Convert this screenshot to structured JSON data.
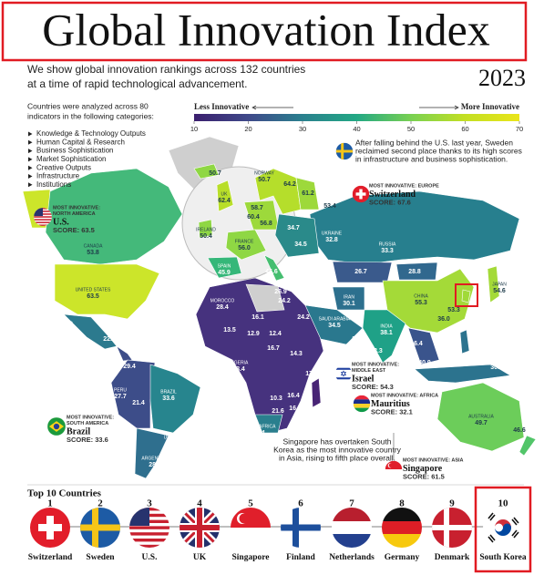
{
  "header": {
    "title": "Global Innovation Index",
    "subtitle": [
      "We show global innovation rankings across 132 countries",
      "at a time of rapid technological advancement."
    ],
    "year": "2023"
  },
  "legend": {
    "low": "Less Innovative",
    "high": "More Innovative",
    "ticks": [
      10,
      20,
      30,
      40,
      50,
      60,
      70
    ]
  },
  "intro": {
    "text": [
      "Countries were analyzed across 80",
      "indicators in the following categories:"
    ],
    "categories": [
      "Knowledge & Technology Outputs",
      "Human Capital & Research",
      "Business Sophistication",
      "Market Sophistication",
      "Creative Outputs",
      "Infrastructure",
      "Institutions"
    ]
  },
  "notes": {
    "sweden": [
      "After falling behind the U.S. last year, Sweden",
      "reclaimed second place thanks to its high scores",
      "in infrastructure and business sophistication."
    ],
    "singapore": [
      "Singapore has overtaken South",
      "Korea as the most innovative country",
      "in Asia, rising to fifth place overall."
    ]
  },
  "callouts": [
    {
      "region": [
        "MOST INNOVATIVE:",
        "NORTH AMERICA"
      ],
      "country": "U.S.",
      "score": "SCORE: 63.5"
    },
    {
      "region": [
        "MOST INNOVATIVE: EUROPE"
      ],
      "country": "Switzerland",
      "score": "SCORE: 67.6"
    },
    {
      "region": [
        "MOST INNOVATIVE:",
        "MIDDLE EAST"
      ],
      "country": "Israel",
      "score": "SCORE: 54.3"
    },
    {
      "region": [
        "MOST INNOVATIVE: AFRICA"
      ],
      "country": "Mauritius",
      "score": "SCORE: 32.1"
    },
    {
      "region": [
        "MOST INNOVATIVE:",
        "SOUTH AMERICA"
      ],
      "country": "Brazil",
      "score": "SCORE: 33.6"
    },
    {
      "region": [
        "MOST INNOVATIVE: ASIA"
      ],
      "country": "Singapore",
      "score": "SCORE: 61.5"
    }
  ],
  "map_labels": [
    {
      "score": "50.7"
    },
    {
      "name": "NORWAY",
      "score": "50.7"
    },
    {
      "score": "64.2"
    },
    {
      "score": "61.2"
    },
    {
      "name": "UK",
      "score": "62.4"
    },
    {
      "score": "58.7"
    },
    {
      "score": "60.4"
    },
    {
      "score": "56.8"
    },
    {
      "score": "34.7"
    },
    {
      "name": "UKRAINE",
      "score": "32.8"
    },
    {
      "score": "53.4"
    },
    {
      "name": "IRELAND",
      "score": "50.4"
    },
    {
      "name": "FRANCE",
      "score": "56.0"
    },
    {
      "score": "34.5"
    },
    {
      "name": "SPAIN",
      "score": "45.9"
    },
    {
      "score": "46.6"
    },
    {
      "score": "37.6"
    },
    {
      "score": "38.6"
    },
    {
      "score": "26.9"
    },
    {
      "name": "RUSSIA",
      "score": "33.3"
    },
    {
      "score": "26.7"
    },
    {
      "score": "28.8"
    },
    {
      "name": "CHINA",
      "score": "55.3"
    },
    {
      "name": "JAPAN",
      "score": "54.6"
    },
    {
      "name": "IRAN",
      "score": "30.1"
    },
    {
      "score": "24.2"
    },
    {
      "name": "SAUDI ARABIA",
      "score": "34.5"
    },
    {
      "name": "INDIA",
      "score": "38.1"
    },
    {
      "score": "28.4"
    },
    {
      "score": "23.3"
    },
    {
      "score": "16.4"
    },
    {
      "score": "36.0"
    },
    {
      "score": "23.5"
    },
    {
      "score": "40.9"
    },
    {
      "name": "PHILIPPINES",
      "score": "32.2"
    },
    {
      "name": "INDONESIA",
      "score": "30.3"
    },
    {
      "name": "AUSTRALIA",
      "score": "49.7"
    },
    {
      "score": "46.6"
    },
    {
      "name": "CANADA",
      "score": "53.8"
    },
    {
      "name": "UNITED STATES",
      "score": "63.5"
    },
    {
      "name": "MEXICO",
      "score": "31.0"
    },
    {
      "score": "22.4"
    },
    {
      "score": "20.5"
    },
    {
      "score": "29.4"
    },
    {
      "name": "PERU",
      "score": "27.7"
    },
    {
      "score": "21.4"
    },
    {
      "name": "BRAZIL",
      "score": "33.6"
    },
    {
      "name": "URUGUAY",
      "score": "30.0"
    },
    {
      "name": "ARGENTINA",
      "score": "28.0"
    },
    {
      "name": "MOROCCO",
      "score": "28.4"
    },
    {
      "score": "16.1"
    },
    {
      "score": "13.5"
    },
    {
      "score": "12.9"
    },
    {
      "score": "12.4"
    },
    {
      "score": "24.2"
    },
    {
      "score": "16.7"
    },
    {
      "name": "NIGERIA",
      "score": "18.4"
    },
    {
      "score": "14.3"
    },
    {
      "score": "17.4"
    },
    {
      "score": "10.3"
    },
    {
      "score": "16.4"
    },
    {
      "score": "21.6"
    },
    {
      "score": "16.5"
    },
    {
      "score": "24.6"
    },
    {
      "name": "MADAGASCAR",
      "score": "19.1"
    },
    {
      "name": "SOUTH AFRICA",
      "score": "30.4"
    },
    {
      "score": "53.3"
    }
  ],
  "top10": {
    "title": "Top 10 Countries",
    "countries": [
      {
        "rank": 1,
        "name": "Switzerland"
      },
      {
        "rank": 2,
        "name": "Sweden"
      },
      {
        "rank": 3,
        "name": "U.S."
      },
      {
        "rank": 4,
        "name": "UK"
      },
      {
        "rank": 5,
        "name": "Singapore"
      },
      {
        "rank": 6,
        "name": "Finland"
      },
      {
        "rank": 7,
        "name": "Netherlands"
      },
      {
        "rank": 8,
        "name": "Germany"
      },
      {
        "rank": 9,
        "name": "Denmark"
      },
      {
        "rank": 10,
        "name": "South Korea"
      }
    ]
  }
}
